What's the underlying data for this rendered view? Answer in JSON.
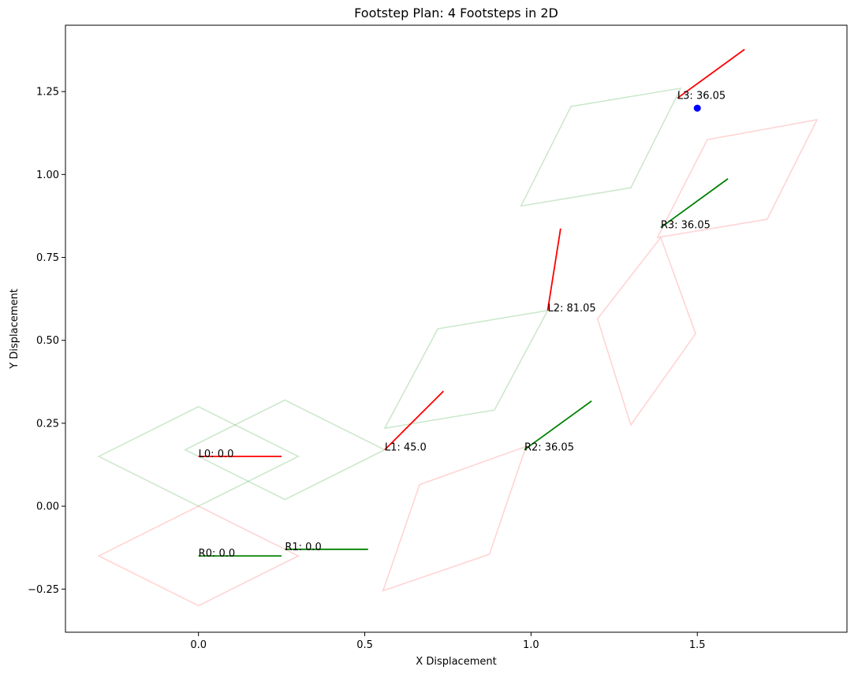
{
  "chart_data": {
    "type": "line",
    "title": "Footstep Plan: 4 Footsteps in 2D",
    "xlabel": "X Displacement",
    "ylabel": "Y Displacement",
    "xlim": [
      -0.4,
      1.95
    ],
    "ylim": [
      -0.38,
      1.45
    ],
    "xticks": [
      0.0,
      0.5,
      1.0,
      1.5
    ],
    "yticks": [
      -0.25,
      0.0,
      0.25,
      0.5,
      0.75,
      1.0,
      1.25
    ],
    "xtick_labels": [
      "0.0",
      "0.5",
      "1.0",
      "1.5"
    ],
    "ytick_labels": [
      "−0.25",
      "0.00",
      "0.25",
      "0.50",
      "0.75",
      "1.00",
      "1.25"
    ],
    "grid": false,
    "colors": {
      "left_heading": "#ff0000",
      "right_heading": "#008000",
      "left_region": "#2ca02c",
      "right_region": "#ff4d4d",
      "goal": "#0000ff"
    },
    "left_regions": [
      [
        [
          -0.3,
          0.15
        ],
        [
          0.0,
          0.3
        ],
        [
          0.3,
          0.15
        ],
        [
          0.0,
          0.0
        ]
      ],
      [
        [
          -0.04,
          0.17
        ],
        [
          0.26,
          0.32
        ],
        [
          0.56,
          0.17
        ],
        [
          0.26,
          0.02
        ]
      ],
      [
        [
          0.56,
          0.235
        ],
        [
          0.72,
          0.535
        ],
        [
          1.05,
          0.59
        ],
        [
          0.89,
          0.29
        ]
      ],
      [
        [
          0.97,
          0.905
        ],
        [
          1.12,
          1.205
        ],
        [
          1.45,
          1.26
        ],
        [
          1.3,
          0.96
        ]
      ]
    ],
    "right_regions": [
      [
        [
          -0.3,
          -0.15
        ],
        [
          0.0,
          0.0
        ],
        [
          0.3,
          -0.15
        ],
        [
          0.0,
          -0.3
        ]
      ],
      [
        [
          0.555,
          -0.255
        ],
        [
          0.665,
          0.065
        ],
        [
          0.985,
          0.18
        ],
        [
          0.875,
          -0.145
        ]
      ],
      [
        [
          1.2,
          0.565
        ],
        [
          1.39,
          0.81
        ],
        [
          1.495,
          0.52
        ],
        [
          1.3,
          0.245
        ]
      ],
      [
        [
          1.38,
          0.81
        ],
        [
          1.53,
          1.105
        ],
        [
          1.86,
          1.165
        ],
        [
          1.71,
          0.865
        ]
      ]
    ],
    "footsteps": [
      {
        "label": "L0: 0.0",
        "side": "left",
        "x": 0.0,
        "y": 0.15,
        "angle_deg": 0.0
      },
      {
        "label": "R0: 0.0",
        "side": "right",
        "x": 0.0,
        "y": -0.15,
        "angle_deg": 0.0
      },
      {
        "label": "L1: 45.0",
        "side": "left",
        "x": 0.56,
        "y": 0.17,
        "angle_deg": 45.0
      },
      {
        "label": "R1: 0.0",
        "side": "right",
        "x": 0.26,
        "y": -0.13,
        "angle_deg": 0.0
      },
      {
        "label": "L2: 81.05",
        "side": "left",
        "x": 1.05,
        "y": 0.59,
        "angle_deg": 81.05
      },
      {
        "label": "R2: 36.05",
        "side": "right",
        "x": 0.98,
        "y": 0.17,
        "angle_deg": 36.05
      },
      {
        "label": "L3: 36.05",
        "side": "left",
        "x": 1.44,
        "y": 1.23,
        "angle_deg": 36.05
      },
      {
        "label": "R3: 36.05",
        "side": "right",
        "x": 1.39,
        "y": 0.84,
        "angle_deg": 36.05
      }
    ],
    "heading_length": 0.25,
    "goal": {
      "x": 1.5,
      "y": 1.2
    }
  }
}
